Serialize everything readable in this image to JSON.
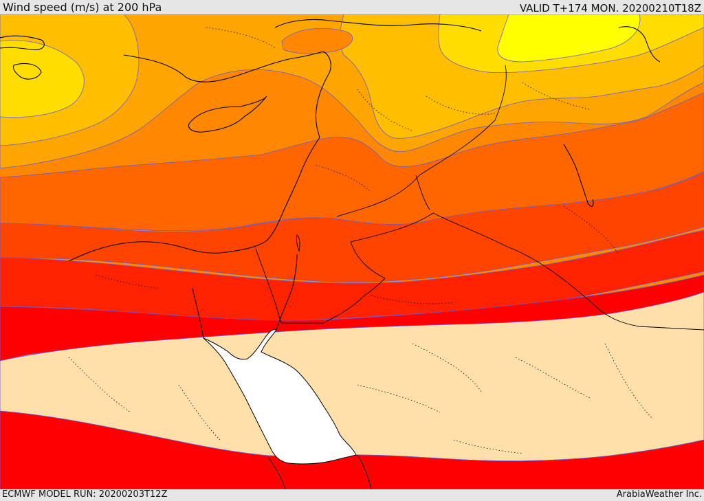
{
  "header": {
    "title": "Wind speed (m/s) at 200 hPa",
    "valid_time": "VALID T+174 MON. 20200210T18Z"
  },
  "footer": {
    "model_run": "ECMWF MODEL RUN: 20200203T12Z",
    "credit": "ArabiaWeather Inc."
  },
  "map_style": {
    "colors": {
      "band_yellow": "#ffff00",
      "band_gold": "#ffdd00",
      "band_amber": "#ffbf00",
      "band_orange_light": "#ffa500",
      "band_orange": "#ff8800",
      "band_orange_dark": "#ff6600",
      "band_red_orange": "#ff4400",
      "band_red_light": "#ff2200",
      "band_red": "#ff0000",
      "band_peach": "#ffdfaa",
      "red_sea": "#ffffff",
      "contour": "#6a5acd",
      "coastline": "#000000"
    }
  }
}
